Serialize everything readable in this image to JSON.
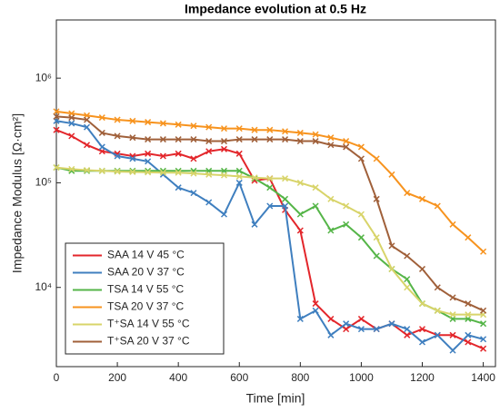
{
  "chart_data": {
    "type": "line",
    "title": "Impedance evolution at 0.5 Hz",
    "x_label": "Time [min]",
    "y_label": "Impedance Modulus [Ω·cm²]",
    "x": [
      0,
      50,
      100,
      150,
      200,
      250,
      300,
      350,
      400,
      450,
      500,
      550,
      600,
      650,
      700,
      750,
      800,
      850,
      900,
      950,
      1000,
      1050,
      1100,
      1150,
      1200,
      1250,
      1300,
      1350,
      1400
    ],
    "series": [
      {
        "name": "SAA 14 V 45 °C",
        "color": "#e3262b",
        "values": [
          320000,
          280000,
          230000,
          200000,
          190000,
          180000,
          190000,
          180000,
          190000,
          170000,
          200000,
          210000,
          190000,
          105000,
          110000,
          55000,
          35000,
          7000,
          5000,
          4000,
          5000,
          4000,
          4500,
          3500,
          4000,
          3500,
          3500,
          3000,
          2600
        ]
      },
      {
        "name": "SAA 20 V 37 °C",
        "color": "#3f7fbf",
        "values": [
          390000,
          370000,
          340000,
          220000,
          180000,
          170000,
          160000,
          120000,
          90000,
          80000,
          65000,
          50000,
          100000,
          40000,
          60000,
          60000,
          5000,
          6000,
          3500,
          4500,
          4000,
          4000,
          4500,
          4000,
          3000,
          3500,
          2500,
          3500,
          3200
        ]
      },
      {
        "name": "TSA 14 V 55 °C",
        "color": "#55b548",
        "values": [
          140000,
          130000,
          130000,
          130000,
          130000,
          130000,
          130000,
          130000,
          130000,
          130000,
          130000,
          130000,
          130000,
          110000,
          90000,
          70000,
          50000,
          60000,
          35000,
          40000,
          30000,
          20000,
          15000,
          12000,
          7000,
          6000,
          5000,
          5000,
          4500
        ]
      },
      {
        "name": "TSA 20 V 37 °C",
        "color": "#f7931e",
        "values": [
          480000,
          460000,
          440000,
          420000,
          400000,
          390000,
          380000,
          370000,
          360000,
          350000,
          340000,
          330000,
          330000,
          320000,
          320000,
          310000,
          300000,
          290000,
          270000,
          250000,
          220000,
          170000,
          120000,
          80000,
          70000,
          60000,
          40000,
          30000,
          22000
        ]
      },
      {
        "name": "T⁺SA 14 V 55 °C",
        "color": "#d8d46a",
        "values": [
          140000,
          135000,
          132000,
          130000,
          128000,
          127000,
          126000,
          125000,
          125000,
          123000,
          120000,
          118000,
          115000,
          112000,
          110000,
          110000,
          100000,
          90000,
          70000,
          60000,
          50000,
          30000,
          15000,
          10000,
          7000,
          6000,
          5500,
          5500,
          5500
        ]
      },
      {
        "name": "T⁺SA 20 V 37 °C",
        "color": "#a0603a",
        "values": [
          430000,
          420000,
          400000,
          300000,
          280000,
          270000,
          260000,
          260000,
          260000,
          260000,
          250000,
          250000,
          260000,
          260000,
          260000,
          260000,
          250000,
          250000,
          230000,
          220000,
          170000,
          70000,
          25000,
          20000,
          15000,
          10000,
          8000,
          7000,
          6000
        ]
      }
    ],
    "xlim": [
      0,
      1440
    ],
    "xticks": [
      0,
      200,
      400,
      600,
      800,
      1000,
      1200,
      1400
    ],
    "ylim": [
      1750,
      3600000
    ],
    "log_y": true,
    "yticks": [
      {
        "value": 10000,
        "label": "10⁴"
      },
      {
        "value": 100000,
        "label": "10⁵"
      },
      {
        "value": 1000000,
        "label": "10⁶"
      }
    ],
    "legend": "lower left",
    "grid": false
  }
}
